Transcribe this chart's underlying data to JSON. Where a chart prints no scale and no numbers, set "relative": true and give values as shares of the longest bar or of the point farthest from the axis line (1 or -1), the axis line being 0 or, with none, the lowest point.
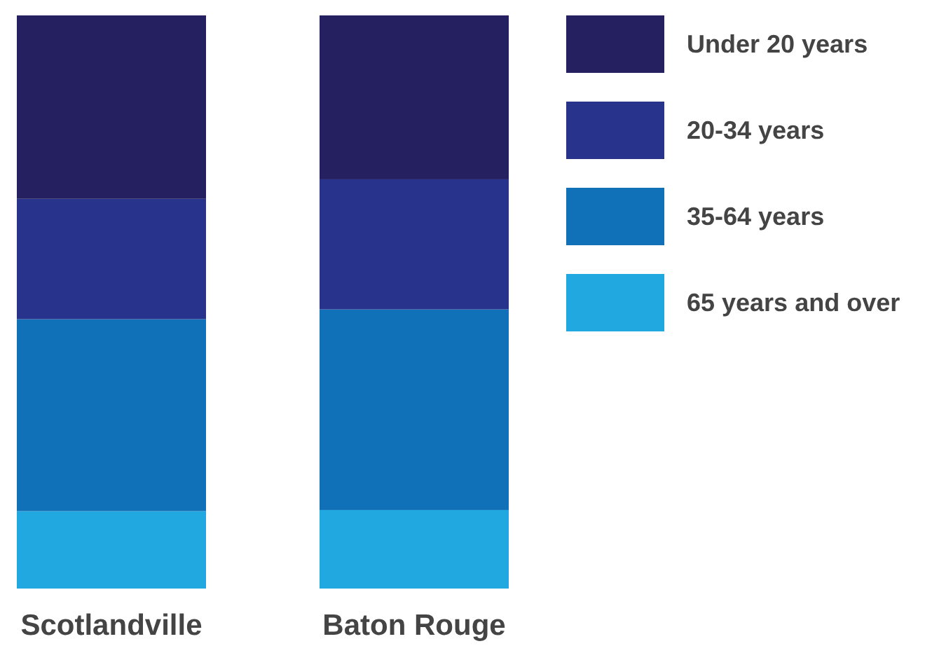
{
  "chart_data": {
    "type": "bar",
    "stacked": true,
    "relative": true,
    "legend": "right",
    "categories": [
      "Scotlandville",
      "Baton Rouge"
    ],
    "series": [
      {
        "name": "65 years and over",
        "color": "#22a8e0",
        "values": [
          0.135,
          0.137
        ]
      },
      {
        "name": "35-64 years",
        "color": "#1070b8",
        "values": [
          0.335,
          0.35
        ]
      },
      {
        "name": "20-34 years",
        "color": "#28348c",
        "values": [
          0.21,
          0.227
        ]
      },
      {
        "name": "Under 20 years",
        "color": "#252060",
        "values": [
          0.32,
          0.286
        ]
      }
    ]
  }
}
